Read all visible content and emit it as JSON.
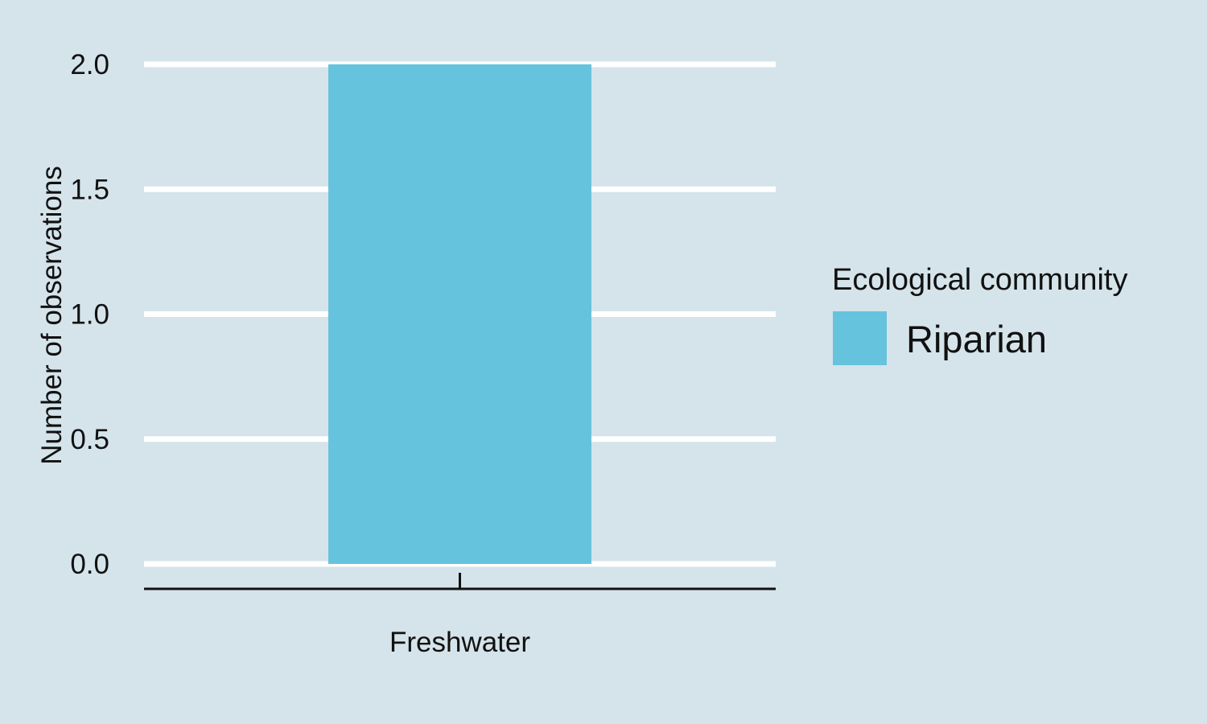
{
  "chart_data": {
    "type": "bar",
    "categories": [
      "Freshwater"
    ],
    "series": [
      {
        "name": "Riparian",
        "values": [
          2
        ]
      }
    ],
    "title": "",
    "xlabel": "",
    "ylabel": "Number of observations",
    "ylim": [
      0,
      2
    ],
    "yticks": [
      0,
      0.5,
      1,
      1.5,
      2
    ],
    "ytick_labels": [
      "0.0",
      "0.5",
      "1.0",
      "1.5",
      "2.0"
    ],
    "grid": true,
    "legend": {
      "title": "Ecological community",
      "placement": "right"
    }
  },
  "colors": {
    "background": "#d5e4eb",
    "gridline": "#ffffff",
    "axis": "#111111",
    "series": [
      "#66c3dd"
    ]
  }
}
